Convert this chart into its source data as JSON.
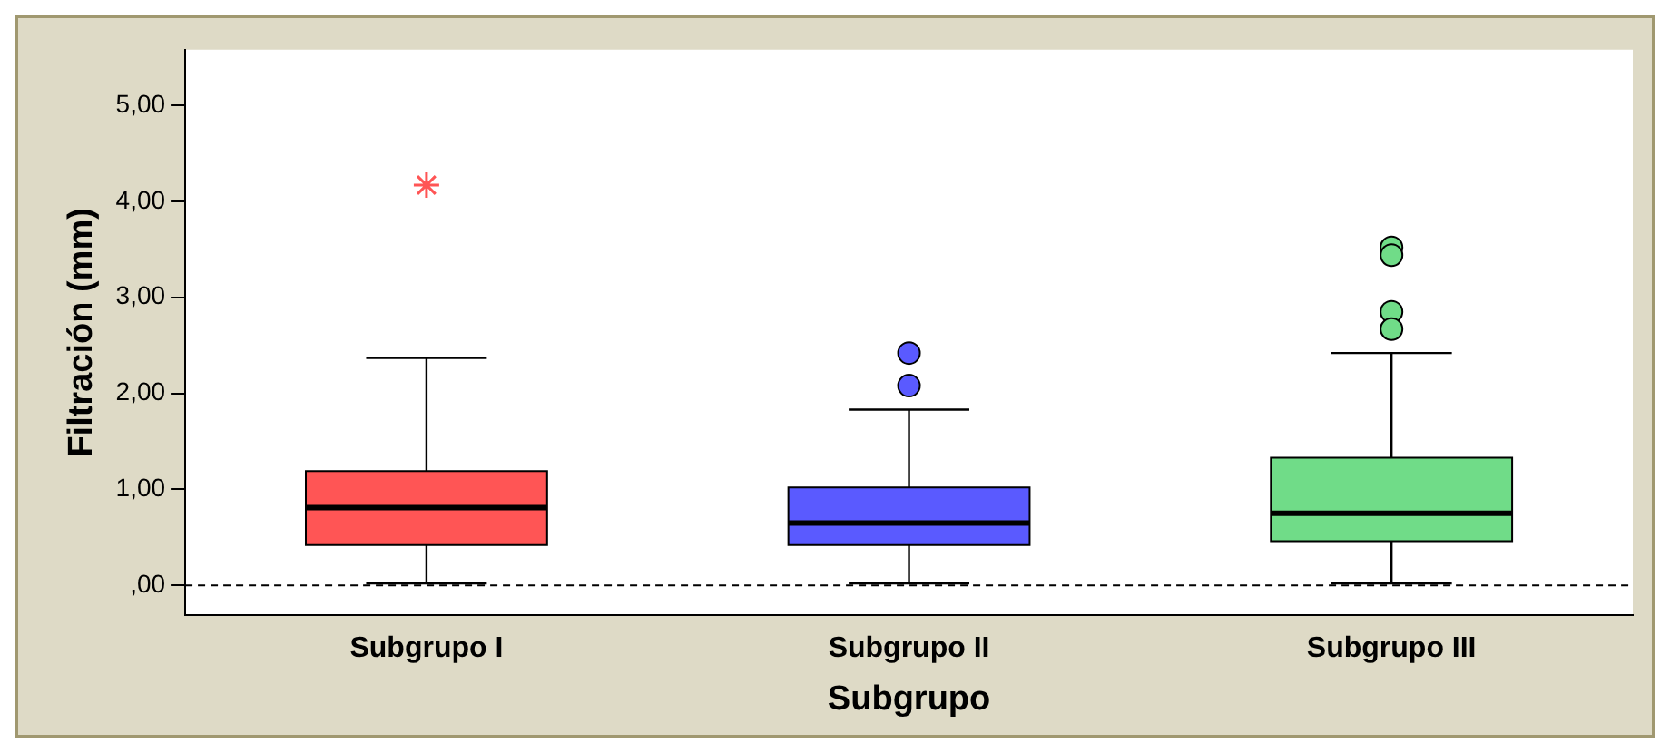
{
  "chart_data": {
    "type": "box",
    "xlabel": "Subgrupo",
    "ylabel": "Filtración (mm)",
    "categories": [
      "Subgrupo I",
      "Subgrupo II",
      "Subgrupo III"
    ],
    "colors": [
      "#ff5555",
      "#5a5aff",
      "#70dc88"
    ],
    "boxes": [
      {
        "low": 0.02,
        "q1": 0.42,
        "median": 0.81,
        "q3": 1.19,
        "high": 2.37
      },
      {
        "low": 0.02,
        "q1": 0.42,
        "median": 0.65,
        "q3": 1.02,
        "high": 1.83,
        "outliers": [
          2.42,
          2.08
        ]
      },
      {
        "low": 0.02,
        "q1": 0.46,
        "median": 0.75,
        "q3": 1.33,
        "high": 2.42,
        "outliers": [
          3.52,
          3.44,
          2.85,
          2.67
        ]
      }
    ],
    "series": [
      {
        "type": "scatter",
        "x": [
          "Subgrupo I"
        ],
        "values": [
          4.17
        ],
        "marker": "cross",
        "color": "#ff5555"
      }
    ],
    "marker": "circle",
    "ylim": [
      -0.31,
      5.58
    ],
    "yticks": [
      {
        "value": 0,
        "label": ",00"
      },
      {
        "value": 1,
        "label": "1,00"
      },
      {
        "value": 2,
        "label": "2,00"
      },
      {
        "value": 3,
        "label": "3,00"
      },
      {
        "value": 4,
        "label": "4,00"
      },
      {
        "value": 5,
        "label": "5,00"
      }
    ],
    "ref_lines": [
      {
        "axis": "y",
        "value": 0,
        "line_style": "dashed",
        "color": "#000000"
      }
    ],
    "grid": false,
    "legend": false
  }
}
